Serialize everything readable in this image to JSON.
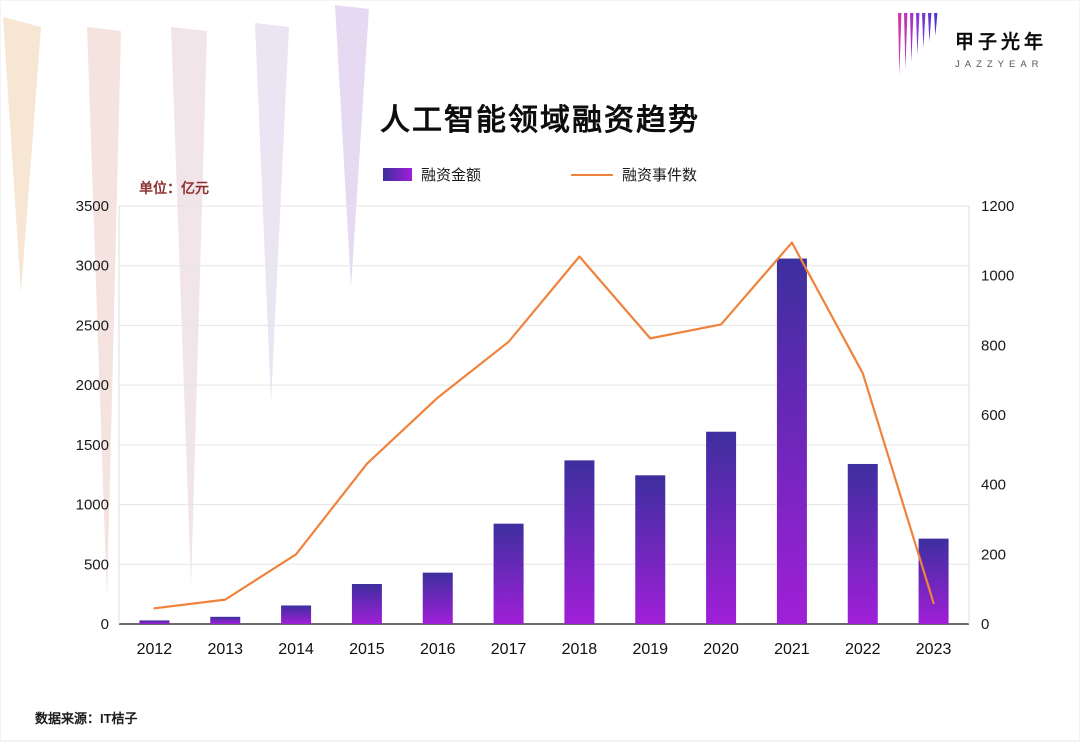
{
  "logo": {
    "name": "甲子光年",
    "subtitle": "JAZZYEAR"
  },
  "title": "人工智能领域融资趋势",
  "unit_label": "单位：亿元",
  "source": "数据来源：IT桔子",
  "legend": {
    "bar_label": "融资金额",
    "line_label": "融资事件数"
  },
  "chart_data": {
    "type": "bar+line",
    "title": "人工智能领域融资趋势",
    "categories": [
      "2012",
      "2013",
      "2014",
      "2015",
      "2016",
      "2017",
      "2018",
      "2019",
      "2020",
      "2021",
      "2022",
      "2023"
    ],
    "series": [
      {
        "name": "融资金额",
        "type": "bar",
        "axis": "left",
        "unit": "亿元",
        "values": [
          30,
          60,
          155,
          335,
          430,
          840,
          1370,
          1245,
          1610,
          3060,
          1340,
          715
        ]
      },
      {
        "name": "融资事件数",
        "type": "line",
        "axis": "right",
        "values": [
          45,
          70,
          200,
          460,
          650,
          810,
          1055,
          820,
          860,
          1095,
          720,
          60
        ]
      }
    ],
    "left_axis": {
      "min": 0,
      "max": 3500,
      "step": 500,
      "label": "单位：亿元"
    },
    "right_axis": {
      "min": 0,
      "max": 1200,
      "step": 200
    },
    "colors": {
      "bar_top": "#3d2f9e",
      "bar_bottom": "#a01fd8",
      "line": "#f0823c"
    },
    "grid": true,
    "legend_position": "top"
  }
}
